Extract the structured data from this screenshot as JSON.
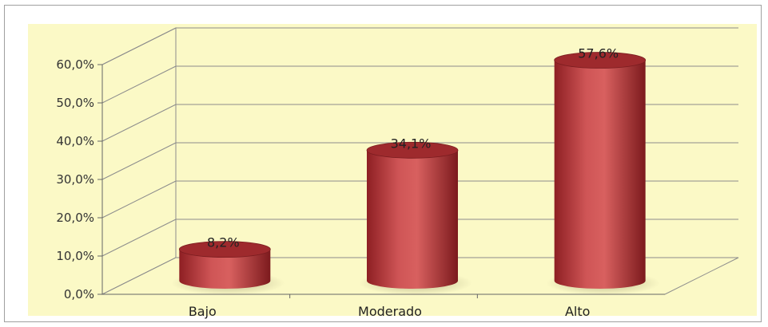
{
  "chart_data": {
    "type": "bar",
    "style": "3d-cylinder",
    "categories": [
      "Bajo",
      "Moderado",
      "Alto"
    ],
    "values": [
      8.2,
      34.1,
      57.6
    ],
    "data_labels": [
      "8,2%",
      "34,1%",
      "57,6%"
    ],
    "y_ticks": [
      "0,0%",
      "10,0%",
      "20,0%",
      "30,0%",
      "40,0%",
      "50,0%",
      "60,0%"
    ],
    "ylim": [
      0,
      60
    ],
    "grid": true,
    "legend": "none",
    "colors": {
      "plot_background": "#fbf9c6",
      "bar_fill": "#b8383b",
      "bar_highlight": "#e06a6a",
      "bar_top": "#9e2a2d",
      "grid": "#8c8c8c"
    }
  }
}
